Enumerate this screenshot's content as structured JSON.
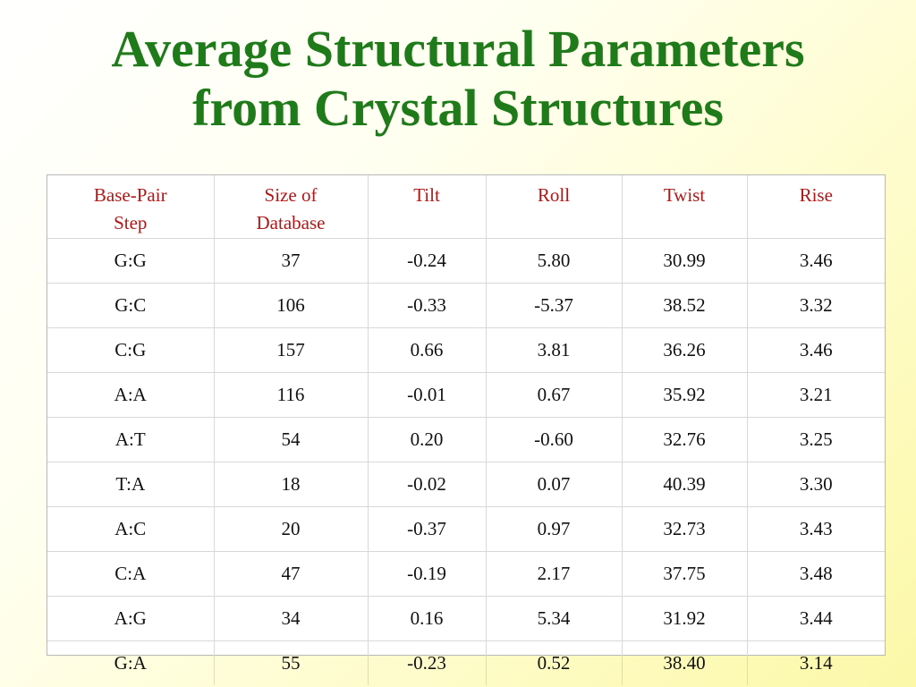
{
  "title": {
    "line1": "Average Structural Parameters",
    "line2": "from Crystal Structures"
  },
  "table": {
    "headers": [
      [
        "Base-Pair",
        "Step"
      ],
      [
        "Size of",
        "Database"
      ],
      [
        "Tilt"
      ],
      [
        "Roll"
      ],
      [
        "Twist"
      ],
      [
        "Rise"
      ]
    ],
    "rows": [
      [
        "G:G",
        "37",
        "-0.24",
        "5.80",
        "30.99",
        "3.46"
      ],
      [
        "G:C",
        "106",
        "-0.33",
        "-5.37",
        "38.52",
        "3.32"
      ],
      [
        "C:G",
        "157",
        "0.66",
        "3.81",
        "36.26",
        "3.46"
      ],
      [
        "A:A",
        "116",
        "-0.01",
        "0.67",
        "35.92",
        "3.21"
      ],
      [
        "A:T",
        "54",
        "0.20",
        "-0.60",
        "32.76",
        "3.25"
      ],
      [
        "T:A",
        "18",
        "-0.02",
        "0.07",
        "40.39",
        "3.30"
      ],
      [
        "A:C",
        "20",
        "-0.37",
        "0.97",
        "32.73",
        "3.43"
      ],
      [
        "C:A",
        "47",
        "-0.19",
        "2.17",
        "37.75",
        "3.48"
      ],
      [
        "A:G",
        "34",
        "0.16",
        "5.34",
        "31.92",
        "3.44"
      ],
      [
        "G:A",
        "55",
        "-0.23",
        "0.52",
        "38.40",
        "3.14"
      ]
    ]
  },
  "colors": {
    "title": "#1f7a1a",
    "header_text": "#b01818",
    "cell_text": "#111111",
    "background_gradient_end": "#fcf8a8"
  }
}
